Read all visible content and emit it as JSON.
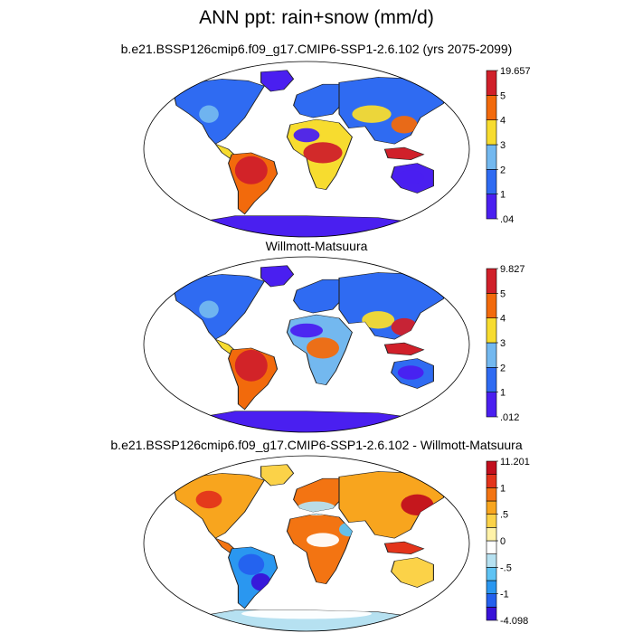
{
  "main_title": "ANN ppt: rain+snow (mm/d)",
  "colors": {
    "ocean": "#ffffff",
    "frame": "#000000",
    "coast": "#222222"
  },
  "panels": [
    {
      "title": "b.e21.BSSP126cmip6.f09_g17.CMIP6-SSP1-2.6.102 (yrs 2075-2099)",
      "colorbar": {
        "colors": [
          "#4a1ff0",
          "#2f6bf2",
          "#73b8ef",
          "#f7dc2f",
          "#f26a0c",
          "#d0202a"
        ],
        "labels": [
          ".04",
          "1",
          "2",
          "3",
          "4",
          "5",
          "19.657"
        ]
      }
    },
    {
      "title": "Willmott-Matsuura",
      "colorbar": {
        "colors": [
          "#4a1ff0",
          "#2f6bf2",
          "#73b8ef",
          "#f7dc2f",
          "#f26a0c",
          "#d0202a"
        ],
        "labels": [
          ".012",
          "1",
          "2",
          "3",
          "4",
          "5",
          "9.827"
        ]
      }
    },
    {
      "title": "b.e21.BSSP126cmip6.f09_g17.CMIP6-SSP1-2.6.102 - Willmott-Matsuura",
      "colorbar": {
        "colors": [
          "#3812d8",
          "#2460ee",
          "#2a97f0",
          "#5ec3f4",
          "#b6e1f1",
          "#ffffff",
          "#fff2a8",
          "#fbd248",
          "#f8a51e",
          "#f37412",
          "#e3341b",
          "#c20f1e"
        ],
        "labels": [
          "-4.098",
          "",
          "-1",
          "",
          "-.5",
          "",
          "0",
          "",
          ".5",
          "",
          "1",
          "",
          "11.201"
        ]
      }
    }
  ]
}
